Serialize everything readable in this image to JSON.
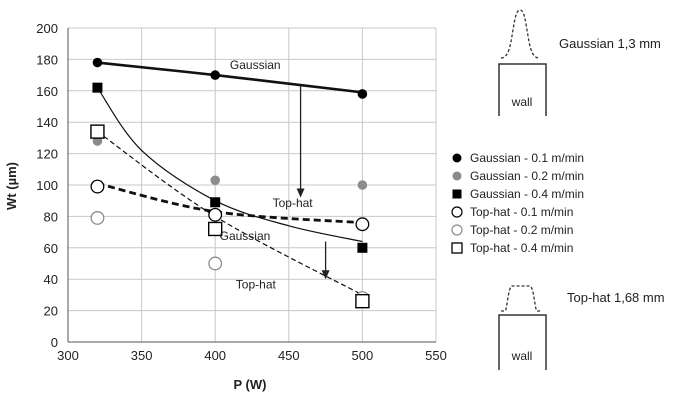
{
  "chart_data": {
    "type": "scatter",
    "title": "",
    "xlabel": "P (W)",
    "ylabel": "Wt (µm)",
    "xlim": [
      300,
      550
    ],
    "ylim": [
      0,
      200
    ],
    "xticks": [
      300,
      350,
      400,
      450,
      500,
      550
    ],
    "yticks": [
      0,
      20,
      40,
      60,
      80,
      100,
      120,
      140,
      160,
      180,
      200
    ],
    "grid": true,
    "legend_position": "right",
    "series": [
      {
        "name": "Gaussian - 0.1 m/min",
        "marker": "filled-circle",
        "color": "#000000",
        "x": [
          320,
          400,
          500
        ],
        "y": [
          178,
          170,
          158
        ]
      },
      {
        "name": "Gaussian - 0.2 m/min",
        "marker": "filled-circle",
        "color": "#8c8c8c",
        "x": [
          320,
          400,
          500
        ],
        "y": [
          128,
          103,
          100
        ]
      },
      {
        "name": "Gaussian - 0.4 m/min",
        "marker": "filled-square",
        "color": "#000000",
        "x": [
          320,
          400,
          500
        ],
        "y": [
          162,
          89,
          60
        ]
      },
      {
        "name": "Top-hat - 0.1 m/min",
        "marker": "open-circle",
        "color": "#000000",
        "x": [
          320,
          400,
          500
        ],
        "y": [
          99,
          81,
          75
        ]
      },
      {
        "name": "Top-hat - 0.2 m/min",
        "marker": "open-circle",
        "color": "#8c8c8c",
        "x": [
          320,
          400,
          500
        ],
        "y": [
          79,
          50,
          28
        ]
      },
      {
        "name": "Top-hat - 0.4 m/min",
        "marker": "open-square",
        "color": "#000000",
        "x": [
          320,
          400,
          500
        ],
        "y": [
          134,
          72,
          26
        ]
      }
    ],
    "trend_lines": [
      {
        "style": "thick-solid",
        "points": [
          [
            320,
            178
          ],
          [
            400,
            170
          ],
          [
            500,
            159
          ]
        ]
      },
      {
        "style": "thin-solid",
        "points": [
          [
            320,
            162
          ],
          [
            350,
            122
          ],
          [
            400,
            90
          ],
          [
            450,
            74
          ],
          [
            500,
            64
          ]
        ]
      },
      {
        "style": "thick-dashed",
        "points": [
          [
            320,
            101
          ],
          [
            400,
            83
          ],
          [
            500,
            76
          ]
        ]
      },
      {
        "style": "thin-dashed",
        "points": [
          [
            320,
            134
          ],
          [
            400,
            80
          ],
          [
            500,
            30
          ]
        ]
      }
    ],
    "annotations": [
      {
        "text": "Gaussian",
        "x": 410,
        "y": 174
      },
      {
        "text": "Top-hat",
        "x": 439,
        "y": 86
      },
      {
        "text": "Gaussian",
        "x": 403,
        "y": 65
      },
      {
        "text": "Top-hat",
        "x": 414,
        "y": 34
      }
    ],
    "arrows": [
      {
        "x": 458,
        "y_from": 163,
        "y_to": 92
      },
      {
        "x": 475,
        "y_from": 64,
        "y_to": 40
      }
    ]
  },
  "profiles": {
    "gaussian_label": "Gaussian 1,3 mm",
    "tophat_label": "Top-hat 1,68 mm",
    "wall_label": "wall"
  }
}
